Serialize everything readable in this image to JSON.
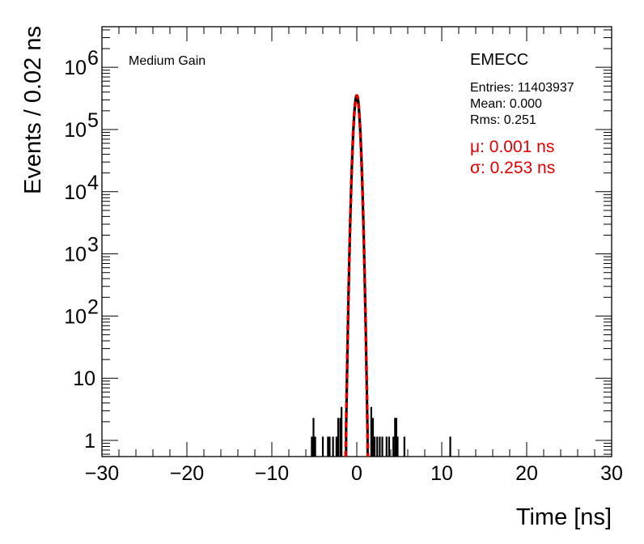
{
  "chart_data": {
    "type": "histogram",
    "title": "",
    "xlabel": "Time [ns]",
    "ylabel": "Events / 0.02 ns",
    "xlim": [
      -30,
      30
    ],
    "ylim": [
      0.55,
      4500000
    ],
    "yscale": "log",
    "grid": false,
    "x_ticks": [
      "−30",
      "−20",
      "−10",
      "0",
      "10",
      "20",
      "30"
    ],
    "x_tick_values": [
      -30,
      -20,
      -10,
      0,
      10,
      20,
      30
    ],
    "y_ticks": [
      {
        "value": 1,
        "base": "1",
        "exp": ""
      },
      {
        "value": 10,
        "base": "10",
        "exp": ""
      },
      {
        "value": 100,
        "base": "10",
        "exp": "2"
      },
      {
        "value": 1000,
        "base": "10",
        "exp": "3"
      },
      {
        "value": 10000,
        "base": "10",
        "exp": "4"
      },
      {
        "value": 100000,
        "base": "10",
        "exp": "5"
      },
      {
        "value": 1000000,
        "base": "10",
        "exp": "6"
      }
    ],
    "annotations": {
      "gain": "Medium Gain",
      "detector": "EMECC",
      "entries": "Entries: 11403937",
      "mean": "Mean: 0.000",
      "rms": "Rms: 0.251",
      "fit_mu": "μ: 0.001 ns",
      "fit_sigma": "σ: 0.253 ns"
    },
    "histogram": {
      "color": "#000000",
      "core_mean": 0.0,
      "core_sigma": 0.253,
      "core_peak": 350000,
      "tail_bins": [
        {
          "x": -5.3,
          "y": 1
        },
        {
          "x": -5.1,
          "y": 2
        },
        {
          "x": -4.9,
          "y": 1
        },
        {
          "x": -4.0,
          "y": 1
        },
        {
          "x": -3.4,
          "y": 1
        },
        {
          "x": -3.2,
          "y": 1
        },
        {
          "x": -2.8,
          "y": 1
        },
        {
          "x": -2.4,
          "y": 1
        },
        {
          "x": -2.2,
          "y": 2
        },
        {
          "x": -1.95,
          "y": 2
        },
        {
          "x": -1.8,
          "y": 3
        },
        {
          "x": 1.7,
          "y": 3
        },
        {
          "x": 1.9,
          "y": 2
        },
        {
          "x": 2.1,
          "y": 1
        },
        {
          "x": 2.4,
          "y": 1
        },
        {
          "x": 2.7,
          "y": 1
        },
        {
          "x": 3.0,
          "y": 1
        },
        {
          "x": 3.5,
          "y": 1
        },
        {
          "x": 3.8,
          "y": 1
        },
        {
          "x": 4.3,
          "y": 1
        },
        {
          "x": 4.5,
          "y": 2
        },
        {
          "x": 4.65,
          "y": 2
        },
        {
          "x": 4.8,
          "y": 1
        },
        {
          "x": 5.6,
          "y": 1
        },
        {
          "x": 11.0,
          "y": 1
        }
      ]
    },
    "fit": {
      "type": "gaussian",
      "mu": 0.001,
      "sigma": 0.253,
      "amplitude": 350000,
      "color": "#e00000",
      "style": "dashed"
    }
  }
}
